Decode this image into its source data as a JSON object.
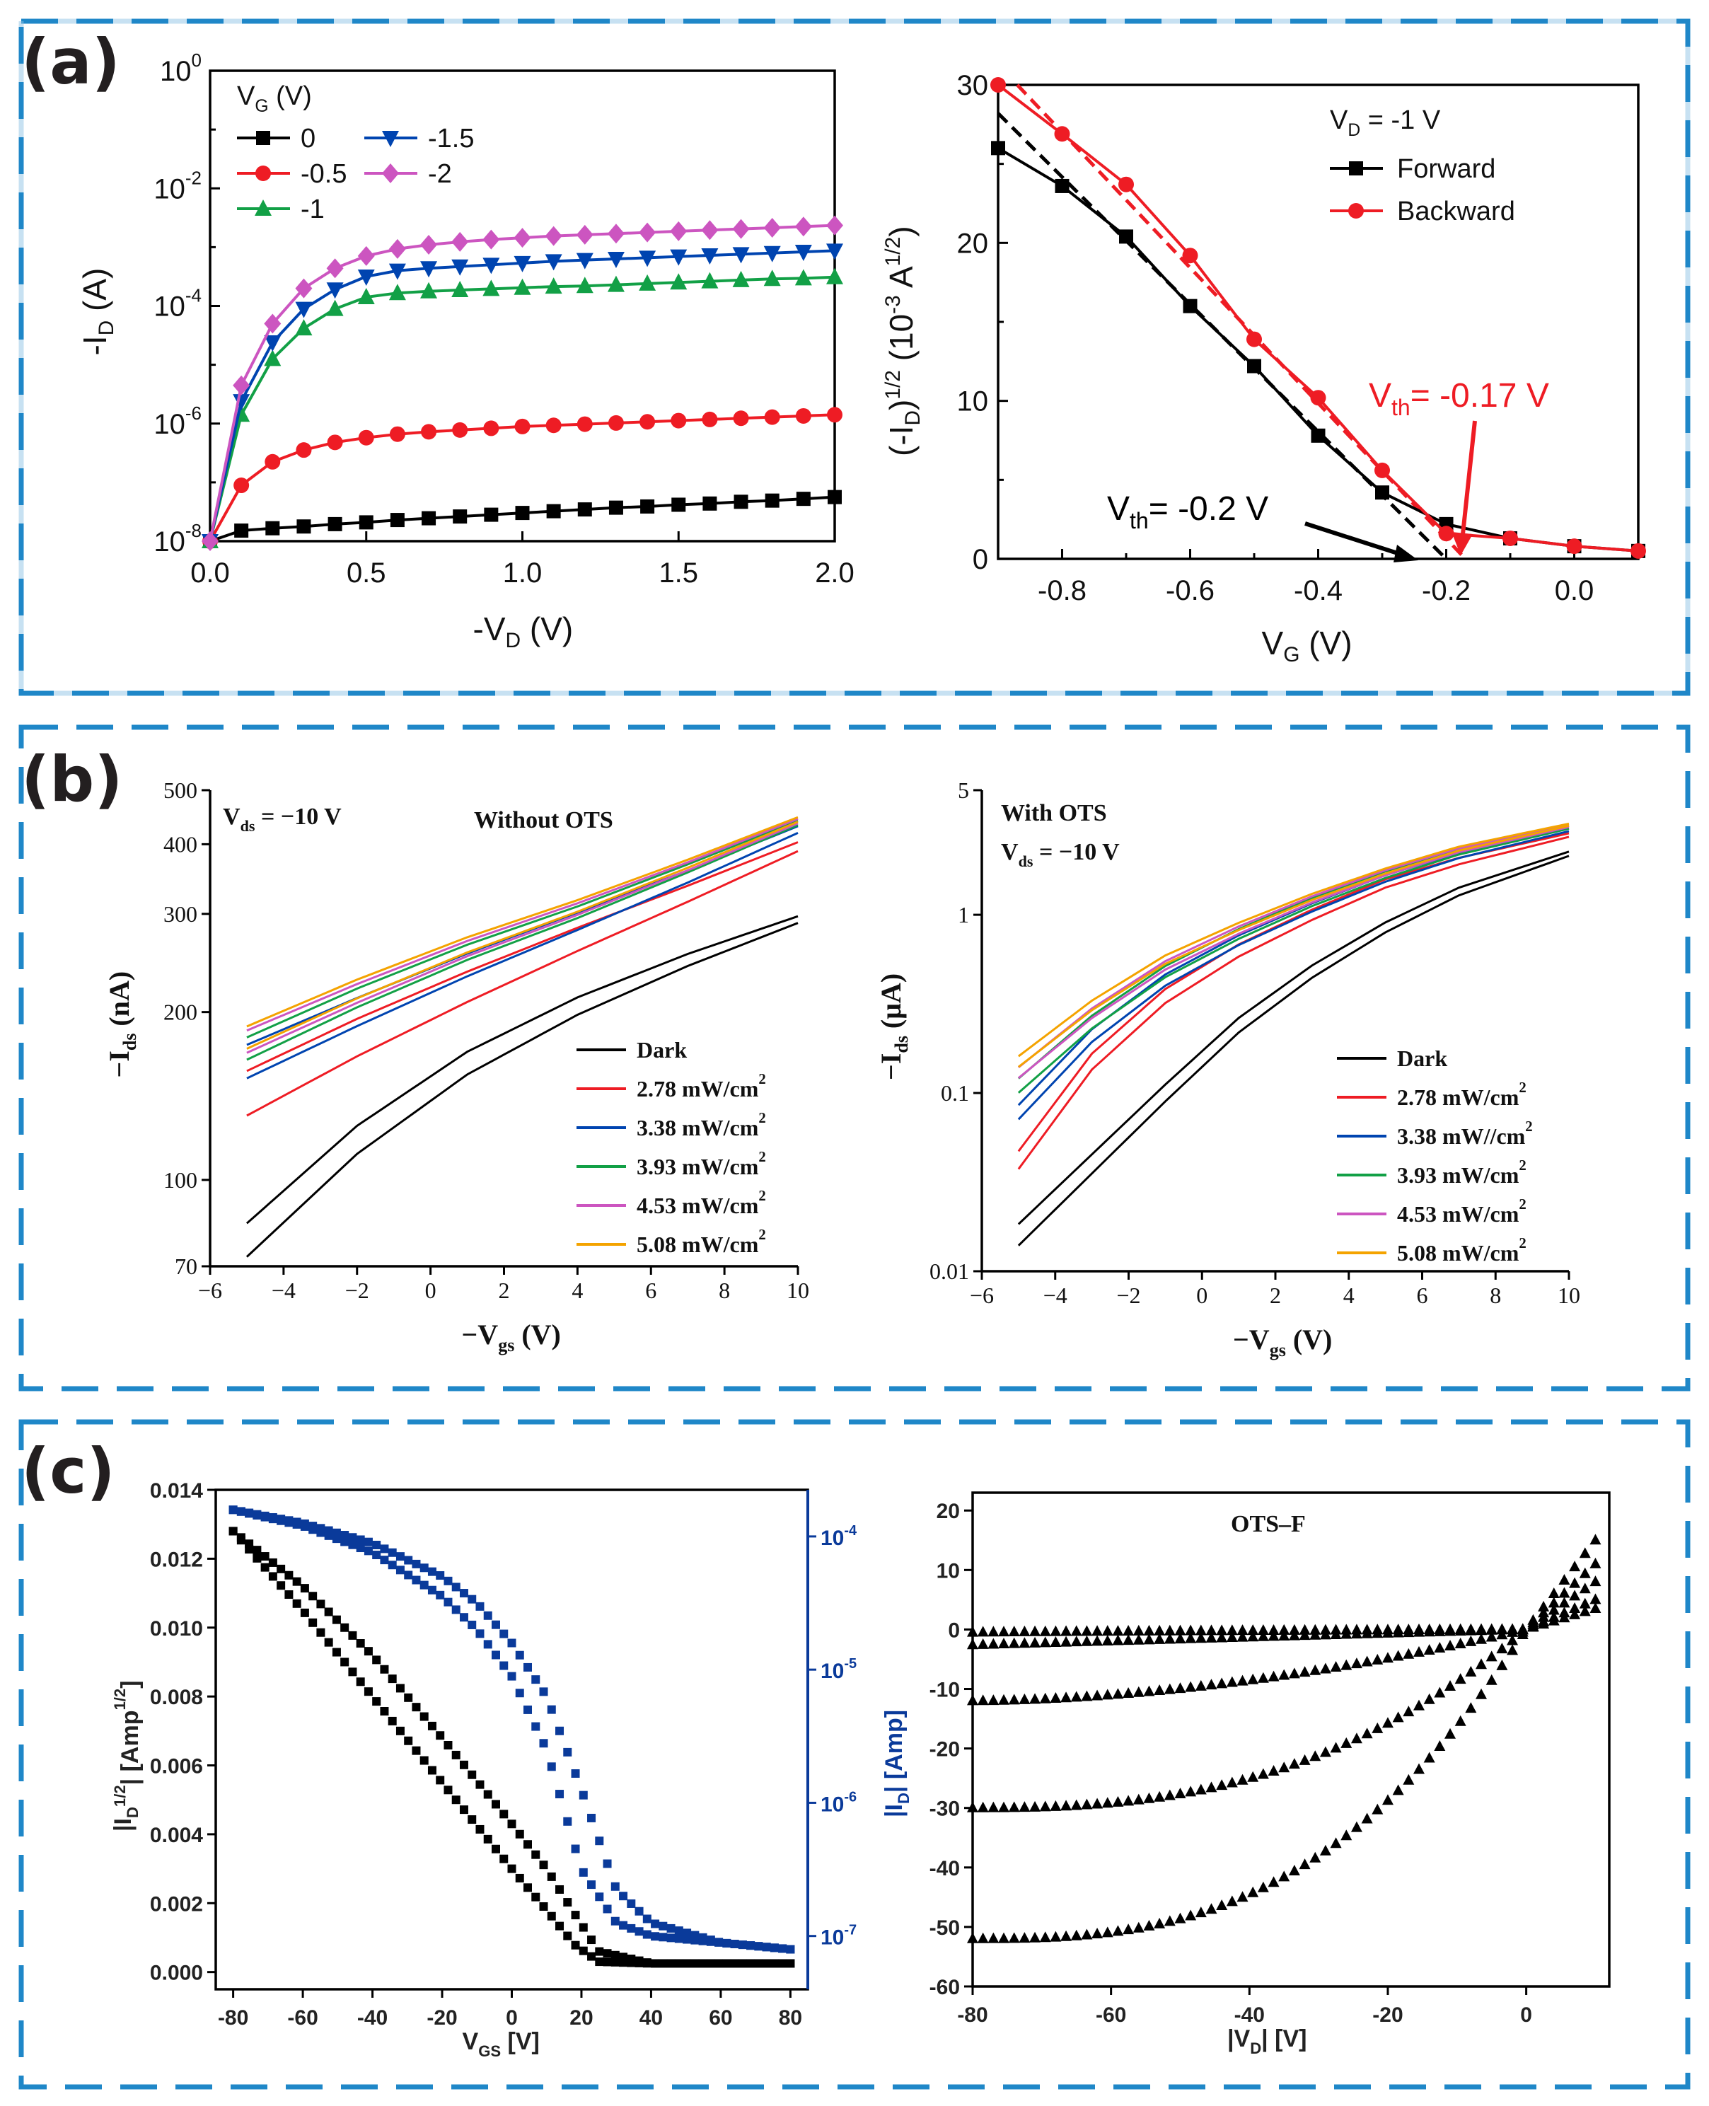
{
  "colors": {
    "frame_dash": "#1f87c8",
    "frame_dash_alt": "#8fc3e6",
    "black": "#000000",
    "red": "#ee1c24",
    "blue": "#0044b0",
    "green": "#12a046",
    "magenta": "#cc55c0",
    "orange": "#f4a300",
    "navy": "#0a3a9a"
  },
  "panels": {
    "a": "(a)",
    "b": "(b)",
    "c": "(c)"
  },
  "chart_data": [
    {
      "id": "a1",
      "type": "line",
      "scale_y": "log",
      "xlim": [
        0,
        2
      ],
      "ylim": [
        -8,
        0
      ],
      "xticks": [
        0,
        0.5,
        1,
        1.5,
        2
      ],
      "xtick_labels": [
        "0.0",
        "0.5",
        "1.0",
        "1.5",
        "2.0"
      ],
      "yticks": [
        -8,
        -6,
        -4,
        -2,
        0
      ],
      "ytick_base": [
        "10",
        "10",
        "10",
        "10",
        "10"
      ],
      "ytick_exp": [
        "-8",
        "-6",
        "-4",
        "-2",
        "0"
      ],
      "xlabel": [
        "-V",
        "D",
        " (V)"
      ],
      "ylabel": [
        "-I",
        "D",
        " (A)"
      ],
      "legend_title": [
        "V",
        "G",
        " (V)"
      ],
      "x": [
        0,
        0.1,
        0.2,
        0.3,
        0.4,
        0.5,
        0.6,
        0.7,
        0.8,
        0.9,
        1.0,
        1.1,
        1.2,
        1.3,
        1.4,
        1.5,
        1.6,
        1.7,
        1.8,
        1.9,
        2.0
      ],
      "series": [
        {
          "name": "0",
          "color": "#000000",
          "marker": "square",
          "logvalues": [
            -8,
            -7.82,
            -7.78,
            -7.75,
            -7.71,
            -7.68,
            -7.64,
            -7.61,
            -7.58,
            -7.55,
            -7.52,
            -7.49,
            -7.46,
            -7.43,
            -7.41,
            -7.38,
            -7.36,
            -7.33,
            -7.31,
            -7.28,
            -7.25
          ]
        },
        {
          "name": "-0.5",
          "color": "#ee1c24",
          "marker": "circle",
          "logvalues": [
            -8,
            -7.05,
            -6.65,
            -6.45,
            -6.32,
            -6.24,
            -6.18,
            -6.14,
            -6.11,
            -6.08,
            -6.05,
            -6.03,
            -6.01,
            -5.99,
            -5.97,
            -5.95,
            -5.93,
            -5.91,
            -5.89,
            -5.87,
            -5.85
          ]
        },
        {
          "name": "-1",
          "color": "#12a046",
          "marker": "triangle-up",
          "logvalues": [
            -8,
            -5.85,
            -4.9,
            -4.38,
            -4.05,
            -3.85,
            -3.78,
            -3.75,
            -3.73,
            -3.71,
            -3.69,
            -3.67,
            -3.66,
            -3.64,
            -3.62,
            -3.6,
            -3.58,
            -3.56,
            -3.54,
            -3.53,
            -3.51
          ]
        },
        {
          "name": "-1.5",
          "color": "#0044b0",
          "marker": "triangle-down",
          "logvalues": [
            -8,
            -5.62,
            -4.62,
            -4.05,
            -3.72,
            -3.5,
            -3.4,
            -3.36,
            -3.33,
            -3.3,
            -3.27,
            -3.24,
            -3.22,
            -3.2,
            -3.18,
            -3.16,
            -3.14,
            -3.12,
            -3.1,
            -3.08,
            -3.06
          ]
        },
        {
          "name": "-2",
          "color": "#cc55c0",
          "marker": "diamond",
          "logvalues": [
            -8,
            -5.35,
            -4.3,
            -3.7,
            -3.36,
            -3.15,
            -3.03,
            -2.96,
            -2.91,
            -2.87,
            -2.84,
            -2.81,
            -2.79,
            -2.77,
            -2.75,
            -2.73,
            -2.71,
            -2.69,
            -2.67,
            -2.65,
            -2.63
          ]
        }
      ]
    },
    {
      "id": "a2",
      "type": "line",
      "xlim": [
        -0.9,
        0.1
      ],
      "ylim": [
        0,
        30
      ],
      "xticks": [
        -0.8,
        -0.6,
        -0.4,
        -0.2,
        0
      ],
      "xtick_labels": [
        "-0.8",
        "-0.6",
        "-0.4",
        "-0.2",
        "0.0"
      ],
      "yticks": [
        0,
        10,
        20,
        30
      ],
      "ytick_labels": [
        "0",
        "10",
        "20",
        "30"
      ],
      "xlabel": [
        "V",
        "G",
        " (V)"
      ],
      "ylabel": [
        "(-I",
        "D",
        ")",
        "1/2",
        " (10",
        "-3",
        " A",
        "1/2",
        ")"
      ],
      "legend_title": "V  = -1 V",
      "legend_title_parts": [
        "V",
        "D",
        " = -1 V"
      ],
      "x": [
        -0.9,
        -0.8,
        -0.7,
        -0.6,
        -0.5,
        -0.4,
        -0.3,
        -0.2,
        -0.1,
        0,
        0.1
      ],
      "series": [
        {
          "name": "Forward",
          "color": "#000000",
          "marker": "square",
          "values": [
            26,
            23.6,
            20.4,
            16,
            12.2,
            7.8,
            4.2,
            2.2,
            1.3,
            0.8,
            0.5
          ]
        },
        {
          "name": "Backward",
          "color": "#ee1c24",
          "marker": "circle",
          "values": [
            30,
            26.9,
            23.7,
            19.2,
            13.9,
            10.2,
            5.6,
            1.6,
            1.3,
            0.8,
            0.5
          ]
        }
      ],
      "fit_lines": [
        {
          "color": "#000000",
          "from": [
            -0.9,
            28.2
          ],
          "to": [
            -0.2,
            0
          ]
        },
        {
          "color": "#ee1c24",
          "from": [
            -0.87,
            30
          ],
          "to": [
            -0.17,
            0
          ]
        }
      ],
      "annotations": [
        {
          "text": "V",
          "sub": "th",
          "rest": "= -0.2 V",
          "color": "#000000"
        },
        {
          "text": "V",
          "sub": "th",
          "rest": "= -0.17 V",
          "color": "#ee1c24"
        }
      ]
    },
    {
      "id": "b1",
      "type": "line",
      "scale_y": "log",
      "xlim": [
        -6,
        10
      ],
      "ylim": [
        70,
        500
      ],
      "xticks": [
        -6,
        -4,
        -2,
        0,
        2,
        4,
        6,
        8,
        10
      ],
      "xtick_labels": [
        "−6",
        "−4",
        "−2",
        "0",
        "2",
        "4",
        "6",
        "8",
        "10"
      ],
      "yticks": [
        70,
        100,
        200,
        300,
        400,
        500
      ],
      "ytick_labels": [
        "70",
        "100",
        "200",
        "300",
        "400",
        "500"
      ],
      "xlabel": [
        "−V",
        "gs",
        " (V)"
      ],
      "ylabel": [
        "−I",
        "ds",
        " (nA)"
      ],
      "note": [
        "V",
        "ds",
        " = −10 V"
      ],
      "title": "Without OTS",
      "series": [
        {
          "name": "Dark",
          "color": "#000000",
          "x": [
            -5,
            -2,
            1,
            4,
            7,
            10
          ],
          "values": [
            78,
            118,
            162,
            205,
            248,
            293
          ],
          "spread": 0.03
        },
        {
          "name": "2.78 mW/cm2",
          "color": "#ee1c24",
          "x": [
            -5,
            -2,
            1,
            4,
            7,
            10
          ],
          "values": [
            143,
            180,
            222,
            270,
            326,
            396
          ],
          "spread": 0.04
        },
        {
          "name": "3.38 mW/cm2",
          "color": "#0044b0",
          "x": [
            -5,
            -2,
            1,
            4,
            7,
            10
          ],
          "values": [
            163,
            200,
            243,
            291,
            350,
            425
          ],
          "spread": 0.03
        },
        {
          "name": "3.93 mW/cm2",
          "color": "#12a046",
          "x": [
            -5,
            -2,
            1,
            4,
            7,
            10
          ],
          "values": [
            172,
            212,
            256,
            302,
            362,
            437
          ],
          "spread": 0.02
        },
        {
          "name": "4.53 mW/cm2",
          "color": "#cc55c0",
          "x": [
            -5,
            -2,
            1,
            4,
            7,
            10
          ],
          "values": [
            177,
            216,
            260,
            306,
            365,
            440
          ],
          "spread": 0.02
        },
        {
          "name": "5.08 mW/cm2",
          "color": "#f4a300",
          "x": [
            -5,
            -2,
            1,
            4,
            7,
            10
          ],
          "values": [
            180,
            220,
            264,
            310,
            369,
            443
          ],
          "spread": 0.02
        }
      ],
      "legend_labels": [
        [
          "Dark",
          ""
        ],
        [
          "2.78 mW/cm",
          "2"
        ],
        [
          "3.38 mW/cm",
          "2"
        ],
        [
          "3.93 mW/cm",
          "2"
        ],
        [
          "4.53 mW/cm",
          "2"
        ],
        [
          "5.08 mW/cm",
          "2"
        ]
      ]
    },
    {
      "id": "b2",
      "type": "line",
      "scale_y": "log",
      "xlim": [
        -6,
        10
      ],
      "ylim": [
        0.01,
        5
      ],
      "xticks": [
        -6,
        -4,
        -2,
        0,
        2,
        4,
        6,
        8,
        10
      ],
      "xtick_labels": [
        "−6",
        "−4",
        "−2",
        "0",
        "2",
        "4",
        "6",
        "8",
        "10"
      ],
      "yticks": [
        0.01,
        0.1,
        1,
        5
      ],
      "ytick_labels": [
        "0.01",
        "0.1",
        "1",
        "5"
      ],
      "xlabel": [
        "−V",
        "gs",
        " (V)"
      ],
      "ylabel": [
        "−I",
        "ds",
        " (μA)"
      ],
      "note": [
        "V",
        "ds",
        " = −10 V"
      ],
      "title": "With OTS",
      "series": [
        {
          "name": "Dark",
          "color": "#000000",
          "x": [
            -5,
            -3,
            -1,
            1,
            3,
            5,
            7,
            10
          ],
          "values": [
            0.016,
            0.04,
            0.1,
            0.24,
            0.48,
            0.85,
            1.35,
            2.2
          ],
          "spread": 0.06
        },
        {
          "name": "2.78 mW/cm2",
          "color": "#ee1c24",
          "x": [
            -5,
            -3,
            -1,
            1,
            3,
            5,
            7,
            10
          ],
          "values": [
            0.042,
            0.15,
            0.35,
            0.63,
            1.0,
            1.5,
            2.0,
            2.8
          ],
          "spread": 0.05
        },
        {
          "name": "3.38 mW//cm2",
          "color": "#0044b0",
          "x": [
            -5,
            -3,
            -1,
            1,
            3,
            5,
            7,
            10
          ],
          "values": [
            0.078,
            0.21,
            0.43,
            0.72,
            1.1,
            1.6,
            2.15,
            3.0
          ],
          "spread": 0.04
        },
        {
          "name": "3.93 mW/cm2",
          "color": "#12a046",
          "x": [
            -5,
            -3,
            -1,
            1,
            3,
            5,
            7,
            10
          ],
          "values": [
            0.11,
            0.25,
            0.48,
            0.78,
            1.18,
            1.68,
            2.25,
            3.1
          ],
          "spread": 0.04
        },
        {
          "name": "4.53 mW/cm2",
          "color": "#cc55c0",
          "x": [
            -5,
            -3,
            -1,
            1,
            3,
            5,
            7,
            10
          ],
          "values": [
            0.13,
            0.28,
            0.52,
            0.82,
            1.22,
            1.72,
            2.3,
            3.15
          ],
          "spread": 0.03
        },
        {
          "name": "5.08 mW/cm2",
          "color": "#f4a300",
          "x": [
            -5,
            -3,
            -1,
            1,
            3,
            5,
            7,
            10
          ],
          "values": [
            0.15,
            0.31,
            0.56,
            0.86,
            1.26,
            1.76,
            2.35,
            3.2
          ],
          "spread": 0.03
        }
      ],
      "legend_labels": [
        [
          "Dark",
          ""
        ],
        [
          "2.78 mW/cm",
          "2"
        ],
        [
          "3.38 mW//cm",
          "2"
        ],
        [
          "3.93 mW/cm",
          "2"
        ],
        [
          "4.53 mW/cm",
          "2"
        ],
        [
          "5.08 mW/cm",
          "2"
        ]
      ]
    },
    {
      "id": "c1",
      "type": "scatter",
      "xlim": [
        -85,
        85
      ],
      "ylim": [
        -0.0005,
        0.014
      ],
      "xticks": [
        -80,
        -60,
        -40,
        -20,
        0,
        20,
        40,
        60,
        80
      ],
      "xtick_labels": [
        "-80",
        "-60",
        "-40",
        "-20",
        "0",
        "20",
        "40",
        "60",
        "80"
      ],
      "yticks": [
        0,
        0.002,
        0.004,
        0.006,
        0.008,
        0.01,
        0.012,
        0.014
      ],
      "ytick_labels": [
        "0.000",
        "0.002",
        "0.004",
        "0.006",
        "0.008",
        "0.010",
        "0.012",
        "0.014"
      ],
      "right_axis": {
        "scale": "log",
        "color": "#0a3a9a",
        "range": [
          -7.4,
          -3.65
        ],
        "ticks": [
          -7,
          -6,
          -5,
          -4
        ],
        "tick_base": [
          "10",
          "10",
          "10",
          "10"
        ],
        "tick_exp": [
          "-7",
          "-6",
          "-5",
          "-4"
        ],
        "label": [
          "|I",
          "D",
          "| [Amp]"
        ]
      },
      "xlabel": [
        "V",
        "GS",
        " [V]"
      ],
      "ylabel": [
        "|I",
        "D",
        "1/2",
        "| [Amp",
        "1/2",
        "]"
      ],
      "series": [
        {
          "name": "sqrt_forward",
          "axis": "left",
          "color": "#000000",
          "x": [
            -80,
            -60,
            -40,
            -20,
            0,
            10,
            18,
            25,
            40,
            60,
            80
          ],
          "values": [
            0.0128,
            0.0105,
            0.008,
            0.0055,
            0.003,
            0.0018,
            0.0008,
            0.0003,
            0.00025,
            0.00025,
            0.00025
          ]
        },
        {
          "name": "sqrt_backward",
          "axis": "left",
          "color": "#000000",
          "x": [
            -80,
            -60,
            -40,
            -20,
            0,
            10,
            18,
            25,
            40,
            60,
            80
          ],
          "values": [
            0.0128,
            0.0112,
            0.0092,
            0.0068,
            0.0043,
            0.003,
            0.0017,
            0.0006,
            0.00025,
            0.00025,
            0.00025
          ]
        },
        {
          "name": "log_forward",
          "axis": "right",
          "color": "#0a3a9a",
          "x": [
            -80,
            -60,
            -40,
            -20,
            -10,
            0,
            10,
            20,
            30,
            40,
            60,
            80
          ],
          "logvalues": [
            -3.8,
            -3.92,
            -4.12,
            -4.45,
            -4.7,
            -5.05,
            -5.6,
            -6.5,
            -6.9,
            -7.0,
            -7.05,
            -7.1
          ]
        },
        {
          "name": "log_backward",
          "axis": "right",
          "color": "#0a3a9a",
          "x": [
            -80,
            -60,
            -40,
            -20,
            -10,
            0,
            10,
            20,
            30,
            40,
            60,
            80
          ],
          "logvalues": [
            -3.8,
            -3.9,
            -4.05,
            -4.3,
            -4.5,
            -4.8,
            -5.2,
            -5.9,
            -6.65,
            -6.9,
            -7.05,
            -7.1
          ]
        }
      ]
    },
    {
      "id": "c2",
      "type": "scatter",
      "xlim": [
        -80,
        12
      ],
      "ylim": [
        -60,
        23
      ],
      "xticks": [
        -80,
        -60,
        -40,
        -20,
        0
      ],
      "xtick_labels": [
        "-80",
        "-60",
        "-40",
        "-20",
        "0"
      ],
      "yticks": [
        20,
        10,
        0,
        -10,
        -20,
        -30,
        -40,
        -50,
        -60
      ],
      "ytick_labels": [
        "20",
        "10",
        "0",
        "-10",
        "-20",
        "-30",
        "-40",
        "-50",
        "-60"
      ],
      "xlabel": [
        "|V",
        "D",
        "| [V]"
      ],
      "title": "OTS–F",
      "series": [
        {
          "name": "curve1",
          "color": "#000000",
          "knee": -0.5,
          "end": 3.5,
          "curv": 0.15
        },
        {
          "name": "curve2",
          "color": "#000000",
          "knee": -2.6,
          "end": 5,
          "curv": 0.4
        },
        {
          "name": "curve3",
          "color": "#000000",
          "knee": -12,
          "end": 8,
          "curv": 1.2
        },
        {
          "name": "curve4",
          "color": "#000000",
          "knee": -30,
          "end": 11,
          "curv": 2.0
        },
        {
          "name": "curve5",
          "color": "#000000",
          "knee": -52,
          "end": 15,
          "curv": 2.2
        }
      ]
    }
  ]
}
